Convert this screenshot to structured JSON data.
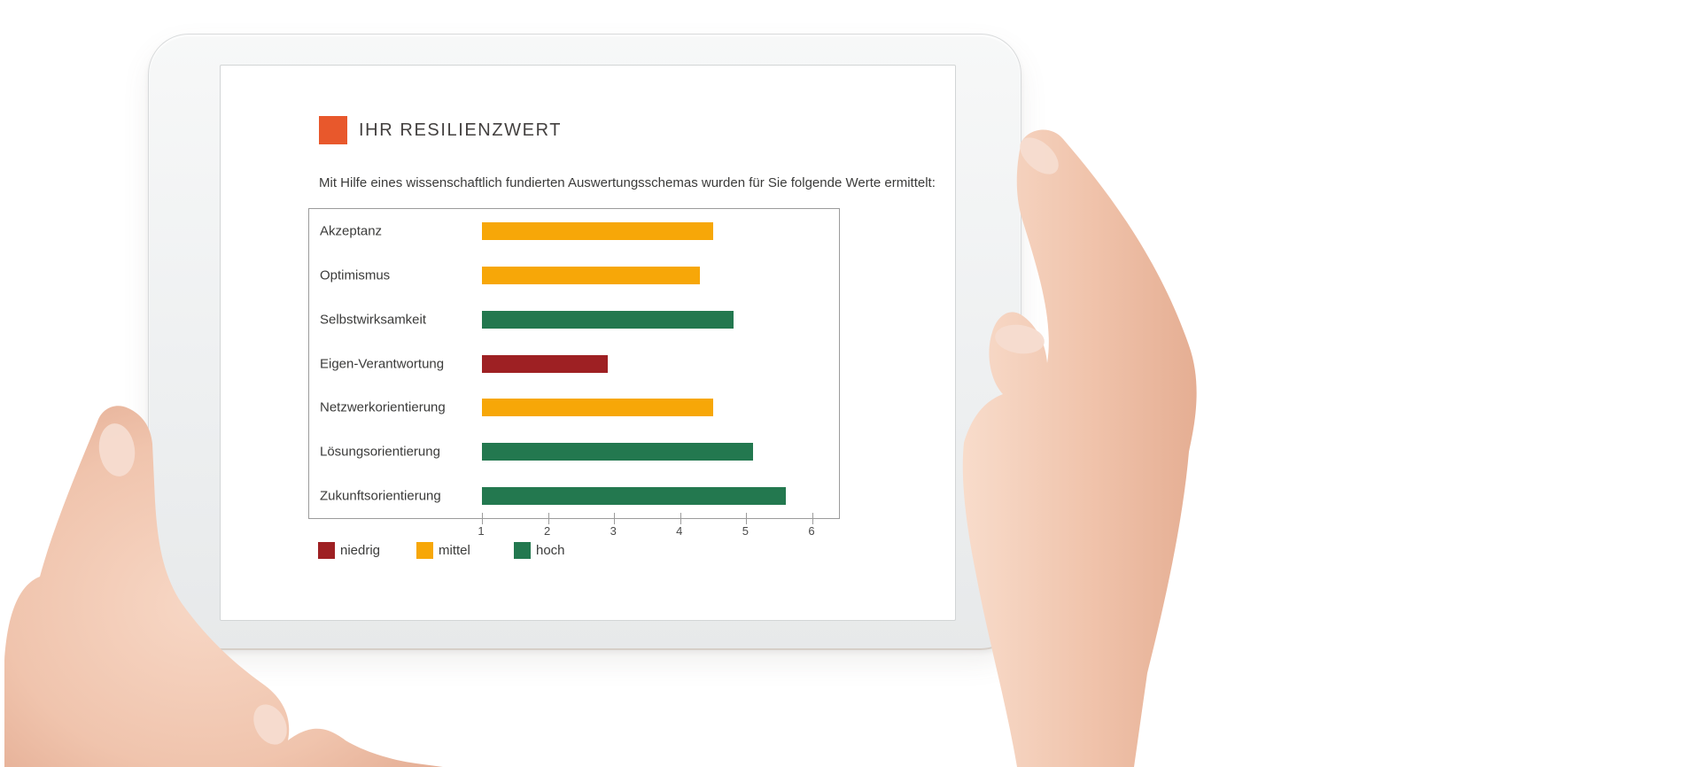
{
  "report": {
    "title": "IHR RESILIENZWERT",
    "subtitle": "Mit Hilfe eines wissenschaftlich fundierten Auswertungsschemas wurden für Sie folgende Werte ermittelt:"
  },
  "colors": {
    "accent_square": "#E8582C",
    "niedrig": "#9E2023",
    "mittel": "#F7A708",
    "hoch": "#23784F",
    "text": "#3B3B3A",
    "axis": "#9B9B9B"
  },
  "chart_data": {
    "type": "bar",
    "orientation": "horizontal",
    "categories": [
      "Akzeptanz",
      "Optimismus",
      "Selbstwirksamkeit",
      "Eigen-Verantwortung",
      "Netzwerkorientierung",
      "Lösungsorientierung",
      "Zukunftsorientierung"
    ],
    "values": [
      4.5,
      4.3,
      4.8,
      2.9,
      4.5,
      5.1,
      5.6
    ],
    "levels": [
      "mittel",
      "mittel",
      "hoch",
      "niedrig",
      "mittel",
      "hoch",
      "hoch"
    ],
    "level_colors": {
      "niedrig": "#9E2023",
      "mittel": "#F7A708",
      "hoch": "#23784F"
    },
    "title": "IHR RESILIENZWERT",
    "xlabel": "",
    "ylabel": "",
    "xlim": [
      1,
      6.4
    ],
    "xticks": [
      1,
      2,
      3,
      4,
      5,
      6
    ],
    "grid": false,
    "legend_position": "bottom",
    "legend": [
      {
        "label": "niedrig",
        "color": "#9E2023"
      },
      {
        "label": "mittel",
        "color": "#F7A708"
      },
      {
        "label": "hoch",
        "color": "#23784F"
      }
    ]
  }
}
